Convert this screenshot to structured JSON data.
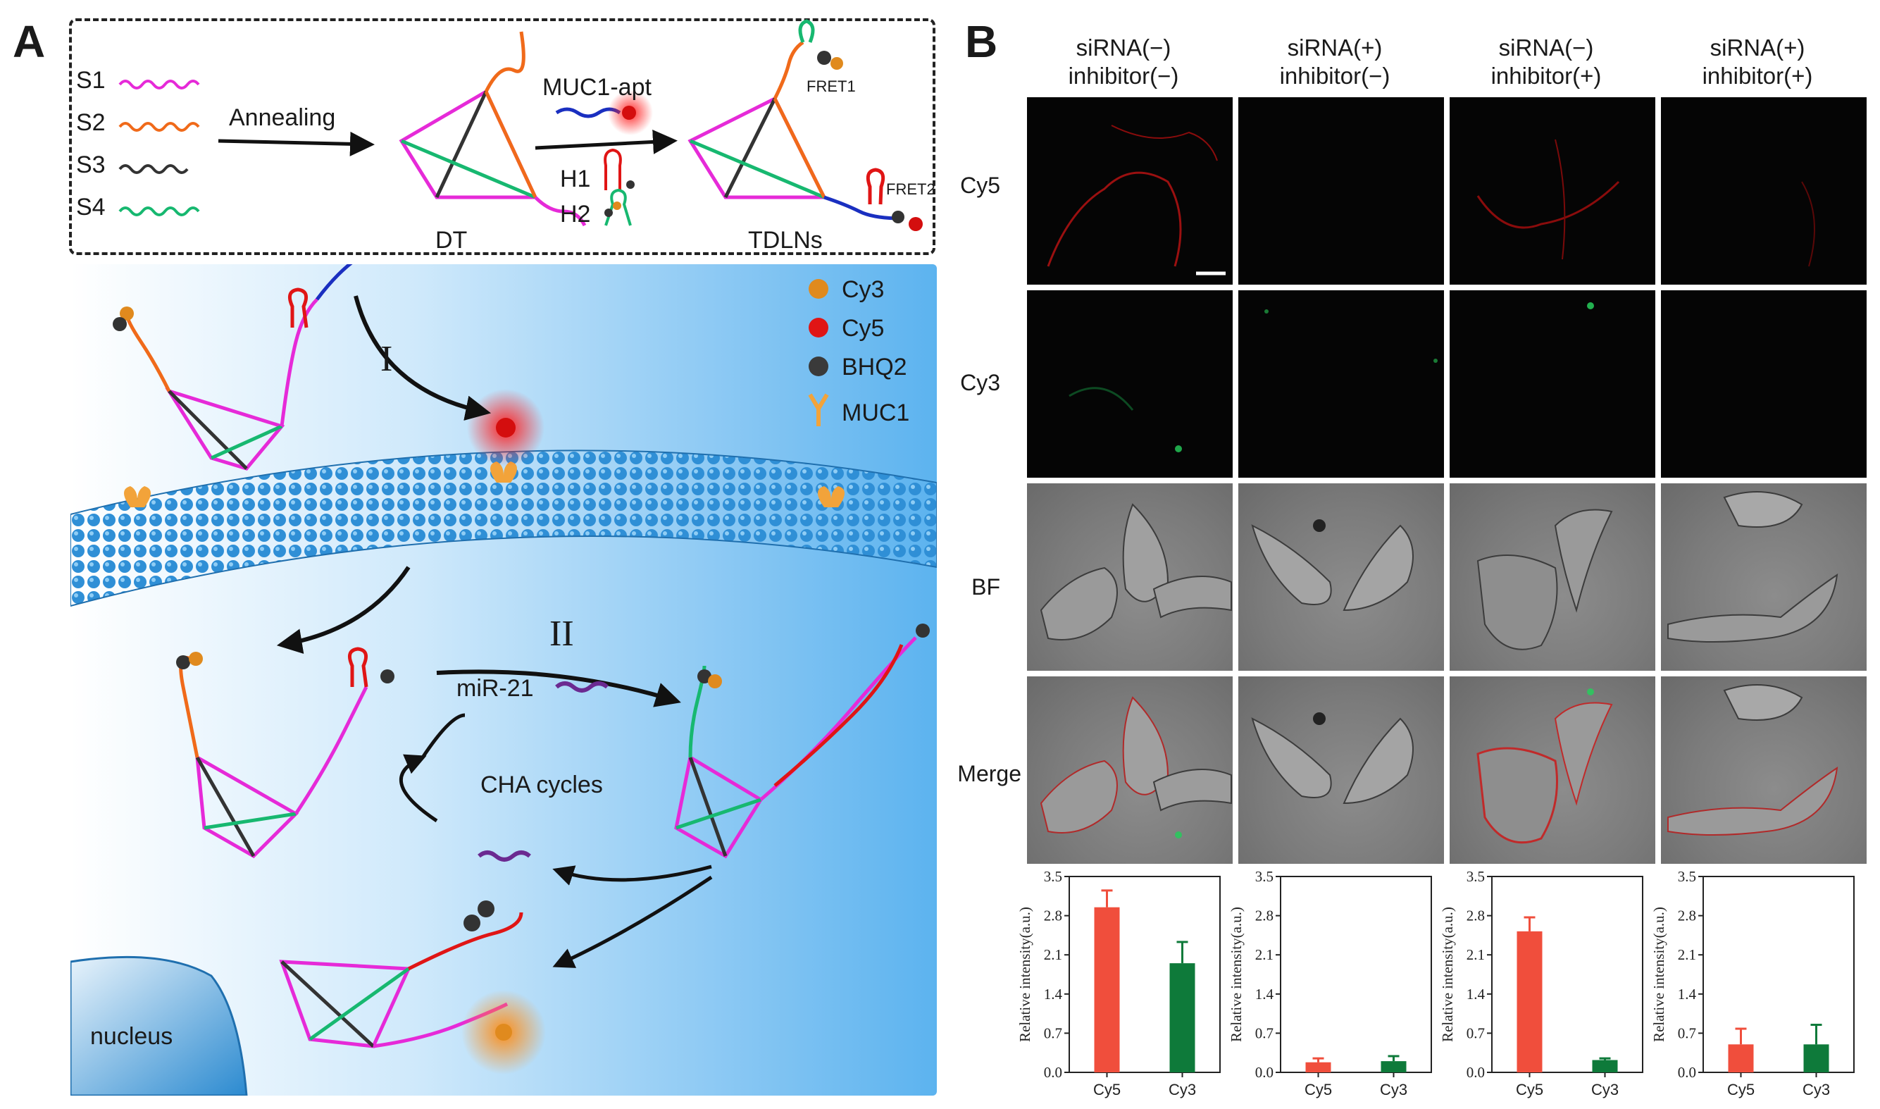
{
  "panel_a": {
    "letter": "A",
    "strands": [
      {
        "label": "S1",
        "color": "#e62ad8"
      },
      {
        "label": "S2",
        "color": "#f06a1a"
      },
      {
        "label": "S3",
        "color": "#333333"
      },
      {
        "label": "S4",
        "color": "#17b870"
      }
    ],
    "annealing": "Annealing",
    "dt": "DT",
    "aptamer": "MUC1-apt",
    "h1": "H1",
    "h2": "H2",
    "tdlns": "TDLNs",
    "fret1": "FRET1",
    "fret2": "FRET2",
    "legend": [
      {
        "label": "Cy3",
        "color": "#e08a1e"
      },
      {
        "label": "Cy5",
        "color": "#e01515"
      },
      {
        "label": "BHQ2",
        "color": "#3a3a3a"
      },
      {
        "label": "MUC1",
        "color": "#f2a33a"
      }
    ],
    "step1": "I",
    "step2": "II",
    "mir": "miR-21",
    "cha": "CHA cycles",
    "nucleus": "nucleus"
  },
  "panel_b": {
    "letter": "B",
    "columns": [
      {
        "line1": "siRNA(−)",
        "line2": "inhibitor(−)"
      },
      {
        "line1": "siRNA(+)",
        "line2": "inhibitor(−)"
      },
      {
        "line1": "siRNA(−)",
        "line2": "inhibitor(+)"
      },
      {
        "line1": "siRNA(+)",
        "line2": "inhibitor(+)"
      }
    ],
    "rows": [
      "Cy5",
      "Cy3",
      "BF",
      "Merge"
    ]
  },
  "chart_data": [
    {
      "type": "bar",
      "categories": [
        "Cy5",
        "Cy3"
      ],
      "values": [
        2.95,
        1.95
      ],
      "errors": [
        0.3,
        0.38
      ],
      "colors": [
        "#f04e3c",
        "#0e7a3a"
      ],
      "ylabel": "Relative intensity(a.u.)",
      "ylim": [
        0,
        3.5
      ],
      "yticks": [
        "0.0",
        "0.7",
        "1.4",
        "2.1",
        "2.8",
        "3.5"
      ]
    },
    {
      "type": "bar",
      "categories": [
        "Cy5",
        "Cy3"
      ],
      "values": [
        0.18,
        0.2
      ],
      "errors": [
        0.07,
        0.09
      ],
      "colors": [
        "#f04e3c",
        "#0e7a3a"
      ],
      "ylabel": "Relative intensity(a.u.)",
      "ylim": [
        0,
        3.5
      ],
      "yticks": [
        "0.0",
        "0.7",
        "1.4",
        "2.1",
        "2.8",
        "3.5"
      ]
    },
    {
      "type": "bar",
      "categories": [
        "Cy5",
        "Cy3"
      ],
      "values": [
        2.52,
        0.22
      ],
      "errors": [
        0.25,
        0.03
      ],
      "colors": [
        "#f04e3c",
        "#0e7a3a"
      ],
      "ylabel": "Relative intensity(a.u.)",
      "ylim": [
        0,
        3.5
      ],
      "yticks": [
        "0.0",
        "0.7",
        "1.4",
        "2.1",
        "2.8",
        "3.5"
      ]
    },
    {
      "type": "bar",
      "categories": [
        "Cy5",
        "Cy3"
      ],
      "values": [
        0.5,
        0.5
      ],
      "errors": [
        0.28,
        0.35
      ],
      "colors": [
        "#f04e3c",
        "#0e7a3a"
      ],
      "ylabel": "Relative intensity(a.u.)",
      "ylim": [
        0,
        3.5
      ],
      "yticks": [
        "0.0",
        "0.7",
        "1.4",
        "2.1",
        "2.8",
        "3.5"
      ]
    }
  ]
}
